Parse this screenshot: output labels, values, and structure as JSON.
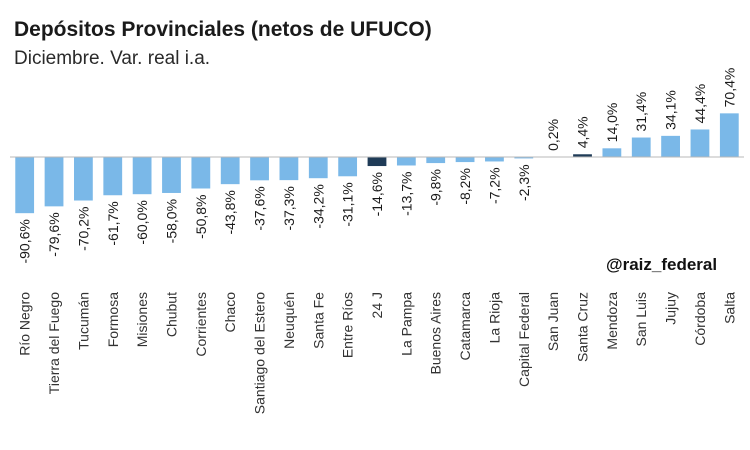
{
  "header": {
    "title": "Depósitos Provinciales (netos de UFUCO)",
    "subtitle": "Diciembre. Var. real i.a."
  },
  "watermark": "@raiz_federal",
  "colors": {
    "bar": "#7ab8e8",
    "highlight": "#1f3b57",
    "baseline": "#b8b8b8",
    "text": "#1a1a1a"
  },
  "chart_data": {
    "type": "bar",
    "title": "Depósitos Provinciales (netos de UFUCO)",
    "subtitle": "Diciembre. Var. real i.a.",
    "xlabel": "",
    "ylabel": "",
    "categories": [
      "Río Negro",
      "Tierra del Fuego",
      "Tucumán",
      "Formosa",
      "Misiones",
      "Chubut",
      "Corrientes",
      "Chaco",
      "Santiago del Estero",
      "Neuquén",
      "Santa Fe",
      "Entre Ríos",
      "24 J",
      "La Pampa",
      "Buenos Aires",
      "Catamarca",
      "La Rioja",
      "Capital Federal",
      "San Juan",
      "Santa Cruz",
      "Mendoza",
      "San Luis",
      "Jujuy",
      "Córdoba",
      "Salta"
    ],
    "values": [
      -90.6,
      -79.6,
      -70.2,
      -61.7,
      -60.0,
      -58.0,
      -50.8,
      -43.8,
      -37.6,
      -37.3,
      -34.2,
      -31.1,
      -14.6,
      -13.7,
      -9.8,
      -8.2,
      -7.2,
      -2.3,
      0.2,
      4.4,
      14.0,
      31.4,
      34.1,
      44.4,
      70.4
    ],
    "value_labels": [
      "-90,6%",
      "-79,6%",
      "-70,2%",
      "-61,7%",
      "-60,0%",
      "-58,0%",
      "-50,8%",
      "-43,8%",
      "-37,6%",
      "-37,3%",
      "-34,2%",
      "-31,1%",
      "-14,6%",
      "-13,7%",
      "-9,8%",
      "-8,2%",
      "-7,2%",
      "-2,3%",
      "0,2%",
      "4,4%",
      "14,0%",
      "31,4%",
      "34,1%",
      "44,4%",
      "70,4%"
    ],
    "highlight": [
      "24 J",
      "Santa Cruz"
    ],
    "ylim": [
      -100,
      100
    ],
    "grid": false,
    "legend": "none"
  }
}
